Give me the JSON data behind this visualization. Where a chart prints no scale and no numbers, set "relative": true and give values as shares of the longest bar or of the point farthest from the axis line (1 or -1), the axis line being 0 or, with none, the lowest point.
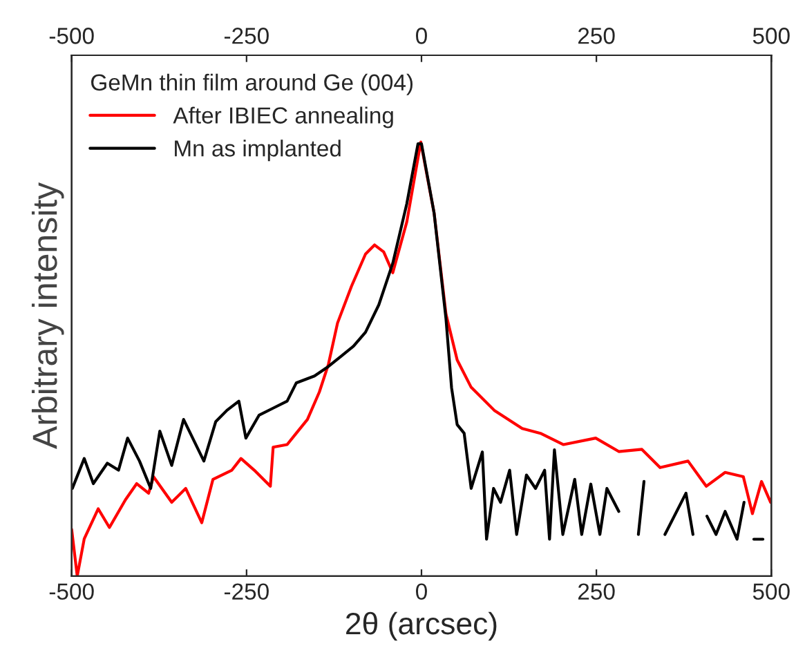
{
  "chart_data": {
    "type": "line",
    "xlabel": "2θ (arcsec)",
    "ylabel": "Arbitrary intensity",
    "legend_title": "GeMn thin film around Ge (004)",
    "legend": "top left",
    "relative": true,
    "grid": false,
    "xlim": [
      -500,
      500
    ],
    "xticks": [
      -500,
      -250,
      0,
      250,
      500
    ],
    "x2lim": [
      -500,
      500
    ],
    "x2ticks": [
      -500,
      -250,
      0,
      250,
      500
    ],
    "series": [
      {
        "name": "After IBIEC annealing",
        "color": "#ff0000",
        "x": [
          -500,
          -492,
          -482,
          -462,
          -446,
          -423,
          -407,
          -390,
          -383,
          -357,
          -337,
          -314,
          -298,
          -271,
          -258,
          -239,
          -216,
          -212,
          -192,
          -179,
          -163,
          -146,
          -133,
          -120,
          -100,
          -80,
          -67,
          -54,
          -41,
          -21,
          -1,
          18,
          35,
          51,
          71,
          104,
          144,
          170,
          203,
          249,
          282,
          315,
          341,
          381,
          407,
          434,
          460,
          473,
          486,
          499
        ],
        "values": [
          0.108,
          0.0,
          0.086,
          0.155,
          0.112,
          0.176,
          0.213,
          0.191,
          0.229,
          0.17,
          0.202,
          0.123,
          0.223,
          0.244,
          0.271,
          0.244,
          0.207,
          0.297,
          0.303,
          0.329,
          0.361,
          0.424,
          0.488,
          0.583,
          0.668,
          0.742,
          0.763,
          0.747,
          0.699,
          0.816,
          1.0,
          0.837,
          0.604,
          0.498,
          0.435,
          0.382,
          0.34,
          0.329,
          0.303,
          0.318,
          0.287,
          0.292,
          0.25,
          0.265,
          0.207,
          0.239,
          0.229,
          0.144,
          0.218,
          0.17
        ]
      },
      {
        "name": "Mn as implanted",
        "color": "#000000",
        "x": [
          -499,
          -482,
          -469,
          -449,
          -433,
          -420,
          -403,
          -387,
          -374,
          -357,
          -340,
          -324,
          -311,
          -294,
          -278,
          -261,
          -251,
          -232,
          -212,
          -192,
          -179,
          -153,
          -133,
          -113,
          -97,
          -80,
          -61,
          -41,
          -21,
          -5,
          0,
          18,
          35,
          43,
          51,
          61,
          71,
          87,
          93,
          103,
          113,
          126,
          136,
          150,
          163,
          176,
          183,
          190,
          202,
          219,
          229,
          242,
          255,
          265,
          282,
          300,
          310,
          318,
          340,
          348,
          378,
          388,
          395,
          408,
          421,
          434,
          451,
          461,
          470,
          475,
          488
        ],
        "values": [
          0.202,
          0.271,
          0.213,
          0.26,
          0.244,
          0.318,
          0.265,
          0.202,
          0.334,
          0.255,
          0.361,
          0.308,
          0.265,
          0.356,
          0.382,
          0.403,
          0.318,
          0.371,
          0.387,
          0.403,
          0.445,
          0.461,
          0.483,
          0.509,
          0.53,
          0.562,
          0.625,
          0.721,
          0.858,
          0.996,
          0.996,
          0.837,
          0.593,
          0.434,
          0.349,
          0.329,
          0.202,
          0.286,
          0.085,
          0.202,
          0.17,
          0.244,
          0.096,
          0.233,
          0.202,
          0.244,
          0.085,
          0.291,
          0.096,
          0.223,
          0.096,
          0.212,
          0.096,
          0.202,
          0.149,
          null,
          0.096,
          0.218,
          null,
          0.096,
          0.191,
          0.096,
          null,
          0.138,
          0.096,
          0.149,
          0.085,
          0.17,
          null,
          0.085,
          0.085
        ]
      }
    ]
  }
}
